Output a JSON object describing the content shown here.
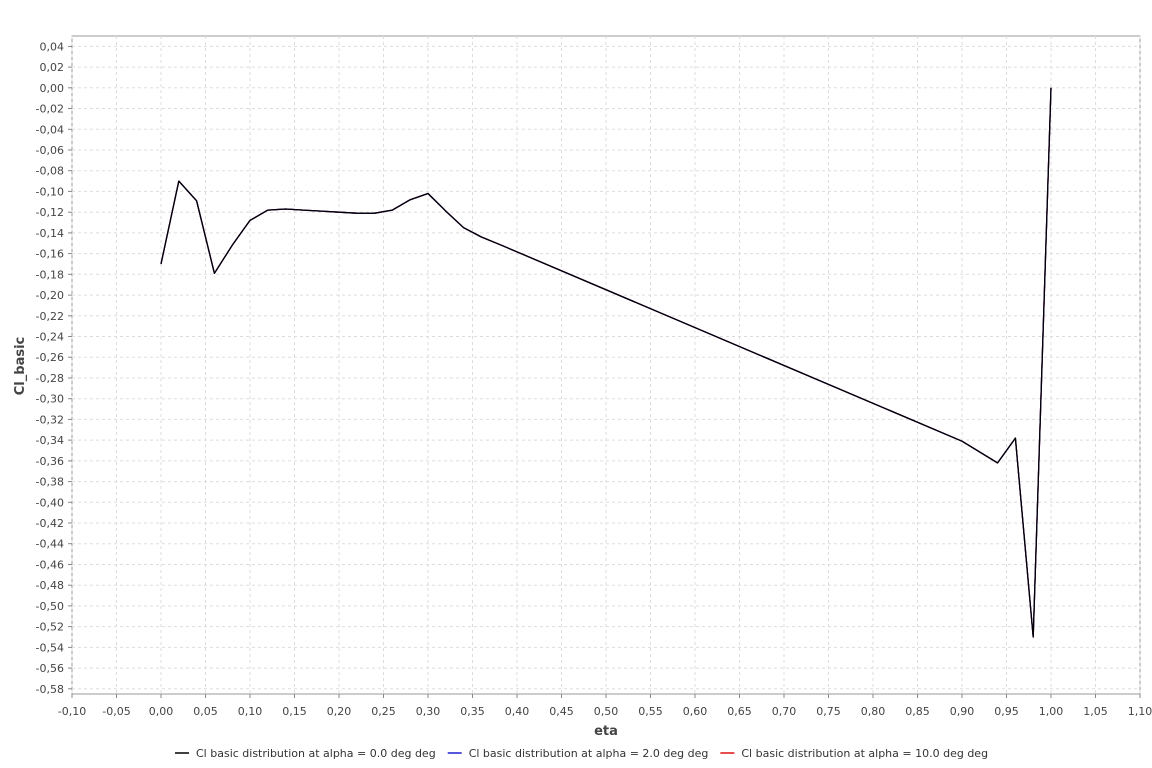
{
  "chart_data": {
    "type": "line",
    "title": "",
    "xlabel": "eta",
    "ylabel": "Cl_basic",
    "xlim": [
      -0.1,
      1.1
    ],
    "ylim": [
      -0.585,
      0.05
    ],
    "x_ticks": [
      -0.1,
      -0.05,
      0.0,
      0.05,
      0.1,
      0.15,
      0.2,
      0.25,
      0.3,
      0.35,
      0.4,
      0.45,
      0.5,
      0.55,
      0.6,
      0.65,
      0.7,
      0.75,
      0.8,
      0.85,
      0.9,
      0.95,
      1.0,
      1.05,
      1.1
    ],
    "x_tick_labels": [
      "-0,10",
      "-0,05",
      "0,00",
      "0,05",
      "0,10",
      "0,15",
      "0,20",
      "0,25",
      "0,30",
      "0,35",
      "0,40",
      "0,45",
      "0,50",
      "0,55",
      "0,60",
      "0,65",
      "0,70",
      "0,75",
      "0,80",
      "0,85",
      "0,90",
      "0,95",
      "1,00",
      "1,05",
      "1,10"
    ],
    "y_ticks": [
      0.04,
      0.02,
      0.0,
      -0.02,
      -0.04,
      -0.06,
      -0.08,
      -0.1,
      -0.12,
      -0.14,
      -0.16,
      -0.18,
      -0.2,
      -0.22,
      -0.24,
      -0.26,
      -0.28,
      -0.3,
      -0.32,
      -0.34,
      -0.36,
      -0.38,
      -0.4,
      -0.42,
      -0.44,
      -0.46,
      -0.48,
      -0.5,
      -0.52,
      -0.54,
      -0.56,
      -0.58
    ],
    "y_tick_labels": [
      "0,04",
      "0,02",
      "0,00",
      "-0,02",
      "-0,04",
      "-0,06",
      "-0,08",
      "-0,10",
      "-0,12",
      "-0,14",
      "-0,16",
      "-0,18",
      "-0,20",
      "-0,22",
      "-0,24",
      "-0,26",
      "-0,28",
      "-0,30",
      "-0,32",
      "-0,34",
      "-0,36",
      "-0,38",
      "-0,40",
      "-0,42",
      "-0,44",
      "-0,46",
      "-0,48",
      "-0,50",
      "-0,52",
      "-0,54",
      "-0,56",
      "-0,58"
    ],
    "grid": true,
    "legend_position": "bottom",
    "x": [
      0.0,
      0.02,
      0.04,
      0.06,
      0.08,
      0.1,
      0.12,
      0.14,
      0.16,
      0.18,
      0.2,
      0.22,
      0.24,
      0.26,
      0.28,
      0.3,
      0.32,
      0.34,
      0.36,
      0.38,
      0.9,
      0.94,
      0.96,
      0.98,
      1.0
    ],
    "series": [
      {
        "name": "Cl basic distribution at alpha = 0.0 deg deg",
        "color": "#000000",
        "values": [
          -0.17,
          -0.09,
          -0.109,
          -0.179,
          -0.152,
          -0.128,
          -0.118,
          -0.117,
          -0.118,
          -0.119,
          -0.12,
          -0.121,
          -0.121,
          -0.118,
          -0.108,
          -0.102,
          -0.119,
          -0.135,
          -0.144,
          -0.151,
          -0.341,
          -0.362,
          -0.338,
          -0.53,
          0.0
        ]
      },
      {
        "name": "Cl basic distribution at alpha = 2.0 deg deg",
        "color": "#1f1fd0",
        "values": [
          -0.17,
          -0.09,
          -0.109,
          -0.179,
          -0.152,
          -0.128,
          -0.118,
          -0.117,
          -0.118,
          -0.119,
          -0.12,
          -0.121,
          -0.121,
          -0.118,
          -0.108,
          -0.102,
          -0.119,
          -0.135,
          -0.144,
          -0.151,
          -0.341,
          -0.362,
          -0.338,
          -0.53,
          0.0
        ]
      },
      {
        "name": "Cl basic distribution at alpha = 10.0 deg deg",
        "color": "#e01010",
        "values": [
          -0.17,
          -0.09,
          -0.109,
          -0.179,
          -0.152,
          -0.128,
          -0.118,
          -0.117,
          -0.118,
          -0.119,
          -0.12,
          -0.121,
          -0.121,
          -0.118,
          -0.108,
          -0.102,
          -0.119,
          -0.135,
          -0.144,
          -0.151,
          -0.341,
          -0.362,
          -0.338,
          -0.53,
          0.0
        ]
      }
    ]
  }
}
